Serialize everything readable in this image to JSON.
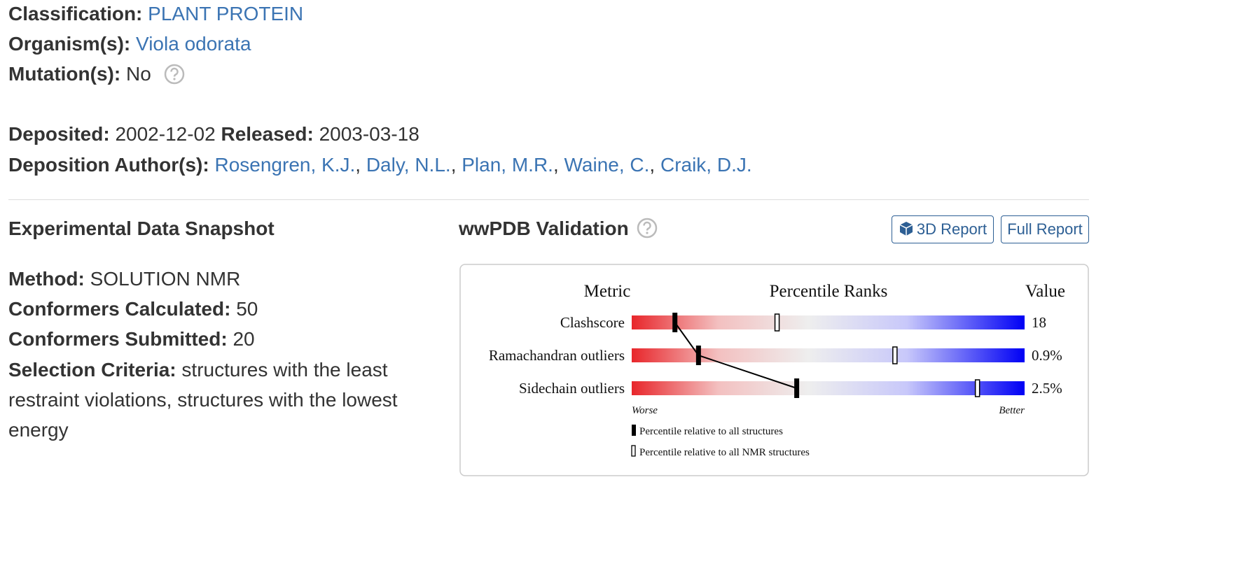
{
  "classification": {
    "label": "Classification:",
    "value": "PLANT PROTEIN"
  },
  "organism": {
    "label": "Organism(s):",
    "value": "Viola odorata"
  },
  "mutation": {
    "label": "Mutation(s):",
    "value": "No"
  },
  "deposited": {
    "label": "Deposited:",
    "value": "2002-12-02"
  },
  "released": {
    "label": "Released:",
    "value": "2003-03-18"
  },
  "authors": {
    "label": "Deposition Author(s):",
    "separator": ",",
    "names": [
      "Rosengren, K.J.",
      "Daly, N.L.",
      "Plan, M.R.",
      "Waine, C.",
      "Craik, D.J."
    ]
  },
  "snapshot": {
    "title": "Experimental Data Snapshot",
    "fields": [
      {
        "label": "Method:",
        "value": "SOLUTION NMR"
      },
      {
        "label": "Conformers Calculated:",
        "value": "50"
      },
      {
        "label": "Conformers Submitted:",
        "value": "20"
      },
      {
        "label": "Selection Criteria:",
        "value": "structures with the least restraint violations, structures with the lowest energy"
      }
    ]
  },
  "validation": {
    "title": "wwPDB Validation",
    "buttons": [
      "3D Report",
      "Full Report"
    ],
    "headers": [
      "Metric",
      "Percentile Ranks",
      "Value"
    ],
    "percentile_range": [
      0,
      100
    ],
    "metrics": [
      {
        "name": "Clashscore",
        "value": "18",
        "percentile_all": 11,
        "percentile_nmr": 37
      },
      {
        "name": "Ramachandran outliers",
        "value": "0.9%",
        "percentile_all": 17,
        "percentile_nmr": 67
      },
      {
        "name": "Sidechain outliers",
        "value": "2.5%",
        "percentile_all": 42,
        "percentile_nmr": 88
      }
    ],
    "worse": "Worse",
    "better": "Better",
    "legend": [
      "Percentile relative to all structures",
      "Percentile relative to all NMR structures"
    ]
  }
}
